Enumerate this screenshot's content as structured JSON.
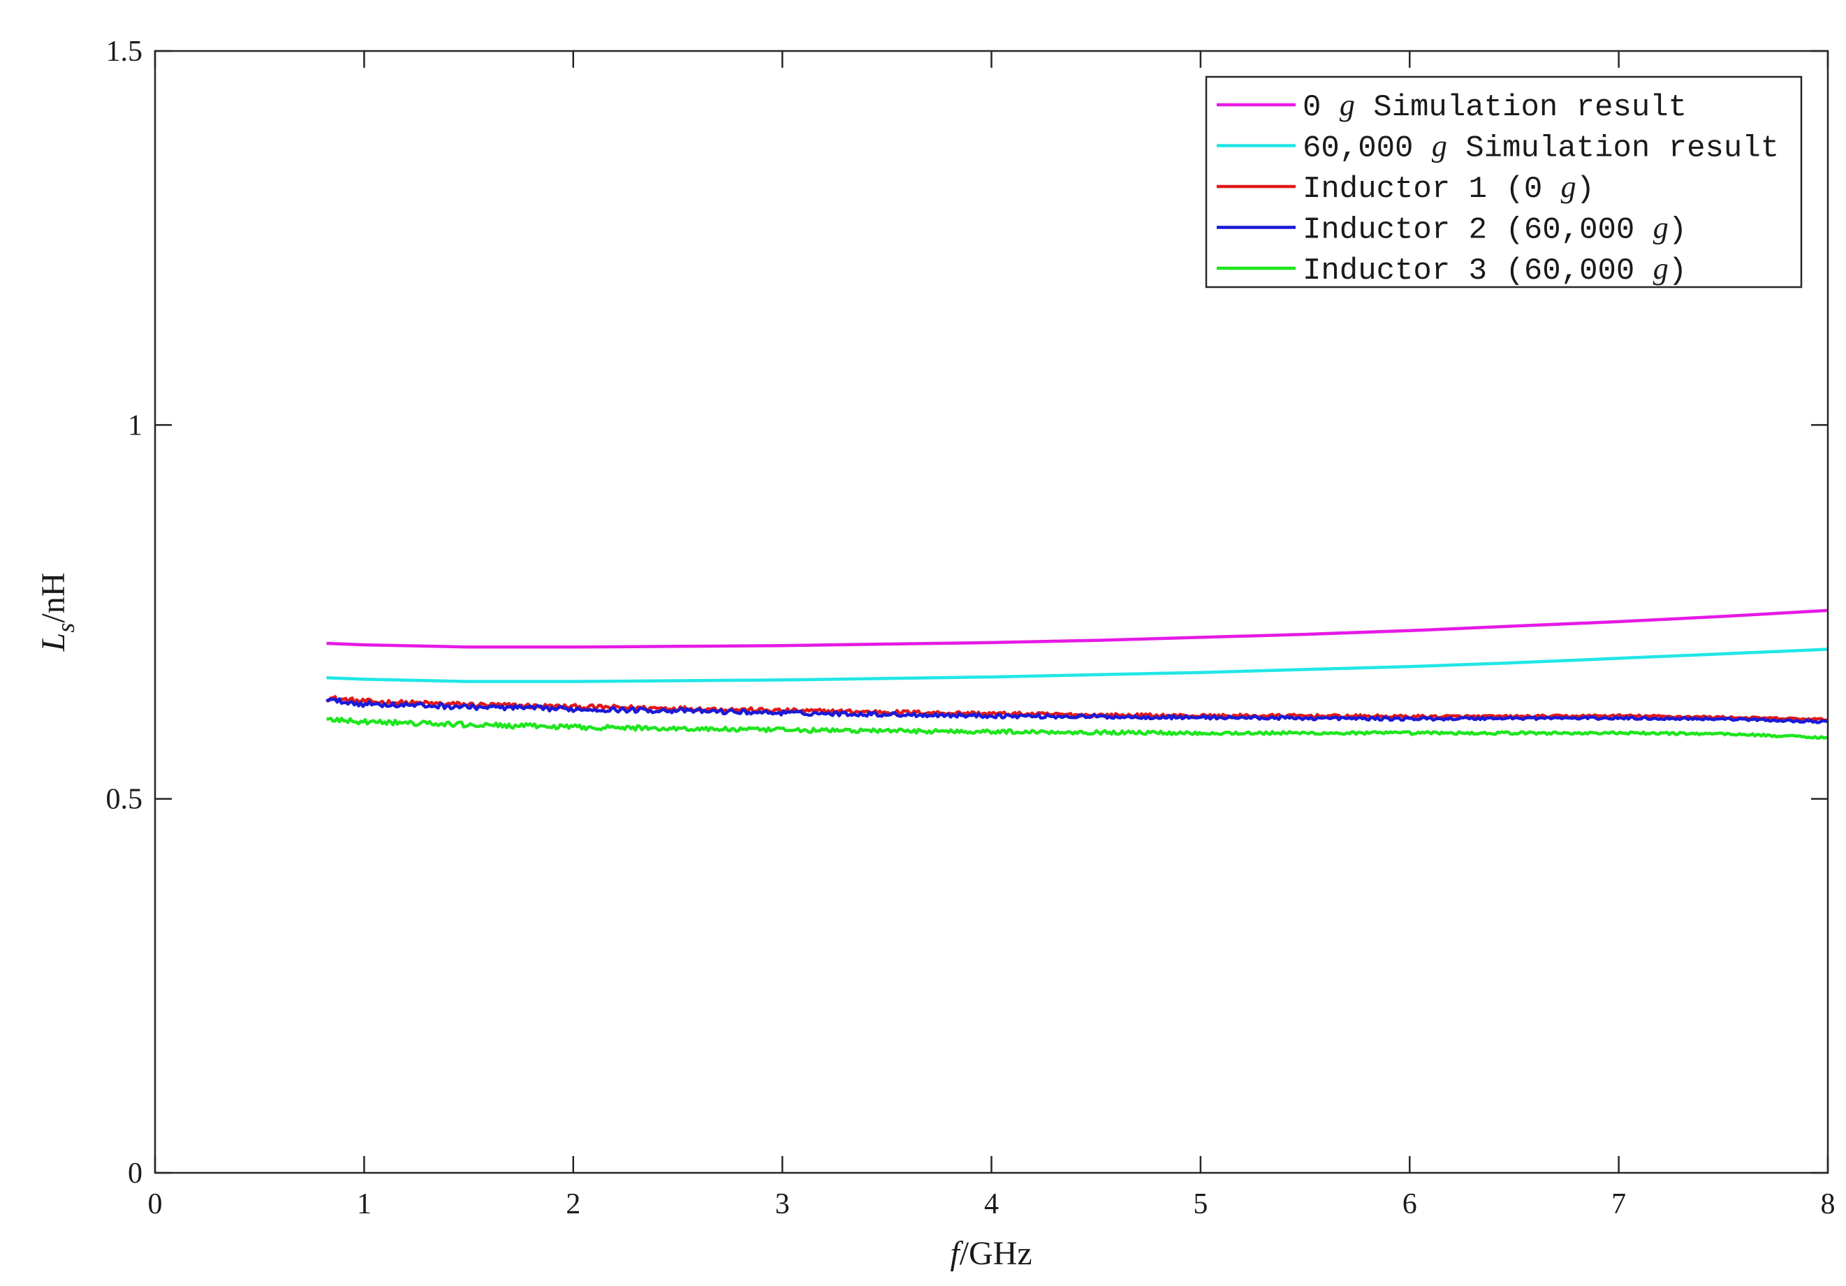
{
  "chart_data": {
    "type": "line",
    "xlabel": {
      "italic": "f",
      "rest": "/GHz"
    },
    "ylabel": {
      "italic": "L",
      "sub": "s",
      "rest": "/nH"
    },
    "xlim": [
      0,
      8
    ],
    "ylim": [
      0,
      1.5
    ],
    "xticks": [
      0,
      1,
      2,
      3,
      4,
      5,
      6,
      7,
      8
    ],
    "xtick_labels": [
      "0",
      "1",
      "2",
      "3",
      "4",
      "5",
      "6",
      "7",
      "8"
    ],
    "yticks": [
      0,
      0.5,
      1,
      1.5
    ],
    "ytick_labels": [
      "0",
      "0.5",
      "1",
      "1.5"
    ],
    "grid": false,
    "legend_position": "top-right",
    "series": [
      {
        "name": "0 g Simulation result",
        "legend": {
          "pre": "0 ",
          "g": "g",
          "post": " Simulation result"
        },
        "color": "#e619e6",
        "x": [
          0.82,
          1.0,
          1.5,
          2.0,
          2.5,
          3.0,
          3.5,
          4.0,
          4.5,
          5.0,
          5.5,
          6.0,
          6.5,
          7.0,
          7.5,
          8.0
        ],
        "y": [
          0.708,
          0.706,
          0.703,
          0.703,
          0.704,
          0.705,
          0.707,
          0.709,
          0.712,
          0.716,
          0.72,
          0.725,
          0.731,
          0.737,
          0.744,
          0.752
        ]
      },
      {
        "name": "60,000 g Simulation result",
        "legend": {
          "pre": "60,000 ",
          "g": "g",
          "post": " Simulation result"
        },
        "color": "#22e6e6",
        "x": [
          0.82,
          1.0,
          1.5,
          2.0,
          2.5,
          3.0,
          3.5,
          4.0,
          4.5,
          5.0,
          5.5,
          6.0,
          6.5,
          7.0,
          7.5,
          8.0
        ],
        "y": [
          0.662,
          0.66,
          0.657,
          0.657,
          0.658,
          0.659,
          0.661,
          0.663,
          0.666,
          0.669,
          0.673,
          0.677,
          0.682,
          0.688,
          0.694,
          0.7
        ]
      },
      {
        "name": "Inductor 1 (0 g)",
        "legend": {
          "pre": "Inductor 1 (0 ",
          "g": "g",
          "post": ")"
        },
        "color": "#e01a1a",
        "noise": true,
        "x": [
          0.82,
          1.0,
          1.5,
          2.0,
          2.5,
          3.0,
          3.5,
          4.0,
          4.5,
          5.0,
          5.5,
          6.0,
          6.5,
          7.0,
          7.5,
          8.0
        ],
        "y": [
          0.635,
          0.63,
          0.626,
          0.623,
          0.621,
          0.618,
          0.616,
          0.614,
          0.612,
          0.611,
          0.611,
          0.61,
          0.61,
          0.611,
          0.609,
          0.606
        ]
      },
      {
        "name": "Inductor 2 (60,000 g)",
        "legend": {
          "pre": "Inductor 2 (60,000 ",
          "g": "g",
          "post": ")"
        },
        "color": "#1a1ad9",
        "noise": true,
        "x": [
          0.82,
          1.0,
          1.5,
          2.0,
          2.5,
          3.0,
          3.5,
          4.0,
          4.5,
          5.0,
          5.5,
          6.0,
          6.5,
          7.0,
          7.5,
          8.0
        ],
        "y": [
          0.632,
          0.627,
          0.623,
          0.62,
          0.618,
          0.615,
          0.613,
          0.611,
          0.61,
          0.609,
          0.608,
          0.607,
          0.608,
          0.608,
          0.607,
          0.603
        ]
      },
      {
        "name": "Inductor 3 (60,000 g)",
        "legend": {
          "pre": "Inductor 3 (60,000 ",
          "g": "g",
          "post": ")"
        },
        "color": "#1ee61e",
        "noise": true,
        "x": [
          0.82,
          1.0,
          1.5,
          2.0,
          2.5,
          3.0,
          3.5,
          4.0,
          4.5,
          5.0,
          5.5,
          6.0,
          6.5,
          7.0,
          7.5,
          8.0
        ],
        "y": [
          0.606,
          0.603,
          0.599,
          0.596,
          0.594,
          0.592,
          0.591,
          0.59,
          0.589,
          0.588,
          0.588,
          0.588,
          0.588,
          0.588,
          0.587,
          0.582
        ]
      }
    ]
  }
}
